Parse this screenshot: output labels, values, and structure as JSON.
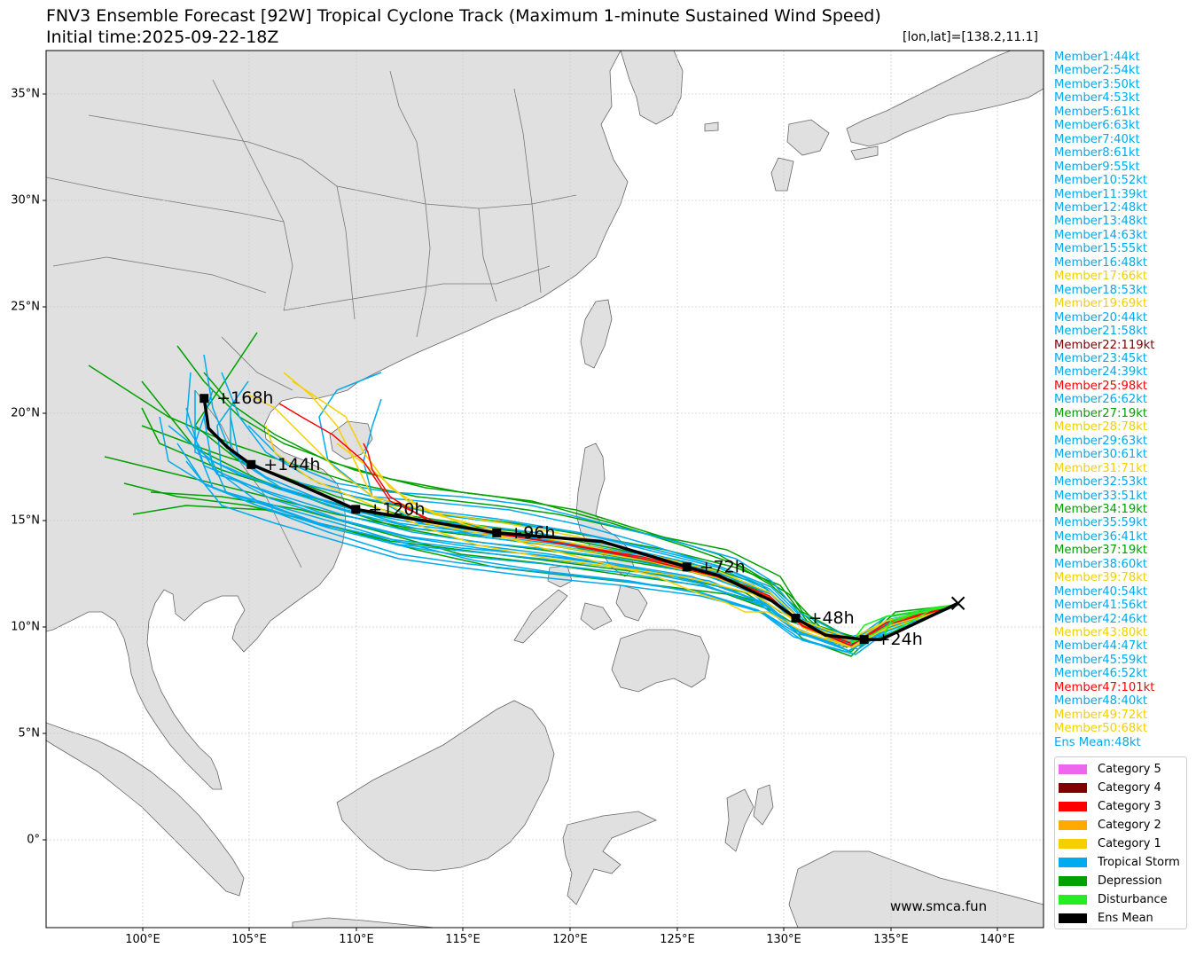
{
  "title_line1": "FNV3 Ensemble Forecast [92W] Tropical Cyclone Track (Maximum 1-minute Sustained Wind Speed)",
  "title_line2": "Initial time:2025-09-22-18Z",
  "coordinate_readout": "[lon,lat]=[138.2,11.1]",
  "watermark": "www.smca.fun",
  "axes": {
    "x_ticks": [
      "100°E",
      "105°E",
      "110°E",
      "115°E",
      "120°E",
      "125°E",
      "130°E",
      "135°E",
      "140°E"
    ],
    "y_ticks": [
      "35°N",
      "30°N",
      "25°N",
      "20°N",
      "15°N",
      "10°N",
      "5°N",
      "0°"
    ],
    "lon_range": [
      95.5,
      142.2
    ],
    "lat_range": [
      -4.1,
      37
    ]
  },
  "colors": {
    "cat5": "#ee66ee",
    "cat4": "#800000",
    "cat3": "#ff0000",
    "cat2": "#ffaa00",
    "cat1": "#f5d000",
    "ts": "#00aaee",
    "td": "#00a000",
    "dist": "#22ee22",
    "mean": "#000000"
  },
  "members": [
    {
      "label": "Member1:44kt",
      "cat": "ts"
    },
    {
      "label": "Member2:54kt",
      "cat": "ts"
    },
    {
      "label": "Member3:50kt",
      "cat": "ts"
    },
    {
      "label": "Member4:53kt",
      "cat": "ts"
    },
    {
      "label": "Member5:61kt",
      "cat": "ts"
    },
    {
      "label": "Member6:63kt",
      "cat": "ts"
    },
    {
      "label": "Member7:40kt",
      "cat": "ts"
    },
    {
      "label": "Member8:61kt",
      "cat": "ts"
    },
    {
      "label": "Member9:55kt",
      "cat": "ts"
    },
    {
      "label": "Member10:52kt",
      "cat": "ts"
    },
    {
      "label": "Member11:39kt",
      "cat": "ts"
    },
    {
      "label": "Member12:48kt",
      "cat": "ts"
    },
    {
      "label": "Member13:48kt",
      "cat": "ts"
    },
    {
      "label": "Member14:63kt",
      "cat": "ts"
    },
    {
      "label": "Member15:55kt",
      "cat": "ts"
    },
    {
      "label": "Member16:48kt",
      "cat": "ts"
    },
    {
      "label": "Member17:66kt",
      "cat": "cat1"
    },
    {
      "label": "Member18:53kt",
      "cat": "ts"
    },
    {
      "label": "Member19:69kt",
      "cat": "cat1"
    },
    {
      "label": "Member20:44kt",
      "cat": "ts"
    },
    {
      "label": "Member21:58kt",
      "cat": "ts"
    },
    {
      "label": "Member22:119kt",
      "cat": "cat4"
    },
    {
      "label": "Member23:45kt",
      "cat": "ts"
    },
    {
      "label": "Member24:39kt",
      "cat": "ts"
    },
    {
      "label": "Member25:98kt",
      "cat": "cat3"
    },
    {
      "label": "Member26:62kt",
      "cat": "ts"
    },
    {
      "label": "Member27:19kt",
      "cat": "td"
    },
    {
      "label": "Member28:78kt",
      "cat": "cat1"
    },
    {
      "label": "Member29:63kt",
      "cat": "ts"
    },
    {
      "label": "Member30:61kt",
      "cat": "ts"
    },
    {
      "label": "Member31:71kt",
      "cat": "cat1"
    },
    {
      "label": "Member32:53kt",
      "cat": "ts"
    },
    {
      "label": "Member33:51kt",
      "cat": "ts"
    },
    {
      "label": "Member34:19kt",
      "cat": "td"
    },
    {
      "label": "Member35:59kt",
      "cat": "ts"
    },
    {
      "label": "Member36:41kt",
      "cat": "ts"
    },
    {
      "label": "Member37:19kt",
      "cat": "td"
    },
    {
      "label": "Member38:60kt",
      "cat": "ts"
    },
    {
      "label": "Member39:78kt",
      "cat": "cat1"
    },
    {
      "label": "Member40:54kt",
      "cat": "ts"
    },
    {
      "label": "Member41:56kt",
      "cat": "ts"
    },
    {
      "label": "Member42:46kt",
      "cat": "ts"
    },
    {
      "label": "Member43:80kt",
      "cat": "cat1"
    },
    {
      "label": "Member44:47kt",
      "cat": "ts"
    },
    {
      "label": "Member45:59kt",
      "cat": "ts"
    },
    {
      "label": "Member46:52kt",
      "cat": "ts"
    },
    {
      "label": "Member47:101kt",
      "cat": "cat3"
    },
    {
      "label": "Member48:40kt",
      "cat": "ts"
    },
    {
      "label": "Member49:72kt",
      "cat": "cat1"
    },
    {
      "label": "Member50:68kt",
      "cat": "cat1"
    },
    {
      "label": "Ens Mean:48kt",
      "cat": "ts"
    }
  ],
  "legend": [
    {
      "label": "Category 5",
      "cat": "cat5"
    },
    {
      "label": "Category 4",
      "cat": "cat4"
    },
    {
      "label": "Category 3",
      "cat": "cat3"
    },
    {
      "label": "Category 2",
      "cat": "cat2"
    },
    {
      "label": "Category 1",
      "cat": "cat1"
    },
    {
      "label": "Tropical Storm",
      "cat": "ts"
    },
    {
      "label": "Depression",
      "cat": "td"
    },
    {
      "label": "Disturbance",
      "cat": "dist"
    },
    {
      "label": "Ens Mean",
      "cat": "mean"
    }
  ],
  "ensemble_mean_track": [
    {
      "lon": 138.2,
      "lat": 11.1
    },
    {
      "lon": 134.6,
      "lat": 9.4
    },
    {
      "lon": 133.8,
      "lat": 9.4
    },
    {
      "lon": 132.0,
      "lat": 9.6
    },
    {
      "lon": 130.6,
      "lat": 10.4
    },
    {
      "lon": 129.5,
      "lat": 11.2
    },
    {
      "lon": 127.0,
      "lat": 12.4
    },
    {
      "lon": 125.5,
      "lat": 12.8
    },
    {
      "lon": 121.5,
      "lat": 14.0
    },
    {
      "lon": 116.6,
      "lat": 14.4
    },
    {
      "lon": 113.0,
      "lat": 15.0
    },
    {
      "lon": 110.0,
      "lat": 15.5
    },
    {
      "lon": 107.5,
      "lat": 16.6
    },
    {
      "lon": 105.1,
      "lat": 17.6
    },
    {
      "lon": 104.0,
      "lat": 18.4
    },
    {
      "lon": 103.1,
      "lat": 19.3
    },
    {
      "lon": 102.9,
      "lat": 20.7
    }
  ],
  "forecast_points": [
    {
      "label": "+24h",
      "lon": 133.8,
      "lat": 9.4
    },
    {
      "label": "+48h",
      "lon": 130.6,
      "lat": 10.4
    },
    {
      "label": "+72h",
      "lon": 125.5,
      "lat": 12.8
    },
    {
      "label": "+96h",
      "lon": 116.6,
      "lat": 14.4
    },
    {
      "label": "+120h",
      "lon": 110.0,
      "lat": 15.5
    },
    {
      "label": "+144h",
      "lon": 105.1,
      "lat": 17.6
    },
    {
      "label": "+168h",
      "lon": 102.9,
      "lat": 20.7
    }
  ],
  "initial_position": {
    "lon": 138.2,
    "lat": 11.1
  }
}
